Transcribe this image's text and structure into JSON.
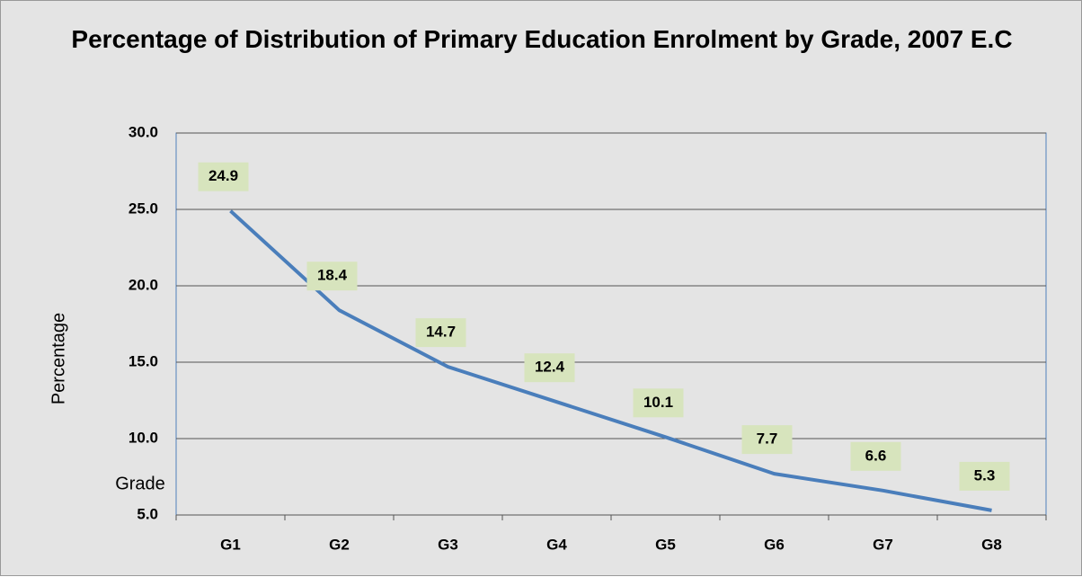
{
  "chart_data": {
    "type": "line",
    "title": "Percentage of Distribution of Primary Education Enrolment by Grade, 2007 E.C",
    "ylabel": "Percentage",
    "xlabel": "Grade",
    "categories": [
      "G1",
      "G2",
      "G3",
      "G4",
      "G5",
      "G6",
      "G7",
      "G8"
    ],
    "series": [
      {
        "name": "Percentage",
        "color": "#4a7ebb",
        "values": [
          24.9,
          18.4,
          14.7,
          12.4,
          10.1,
          7.7,
          6.6,
          5.3
        ]
      }
    ],
    "ylim": [
      5,
      30
    ],
    "yticks": [
      {
        "value": 5,
        "label": "5.0"
      },
      {
        "value": 10,
        "label": "10.0"
      },
      {
        "value": 15,
        "label": "15.0"
      },
      {
        "value": 20,
        "label": "20.0"
      },
      {
        "value": 25,
        "label": "25.0"
      },
      {
        "value": 30,
        "label": "30.0"
      }
    ],
    "grid": true,
    "label_box_color": "#d7e4bd"
  }
}
